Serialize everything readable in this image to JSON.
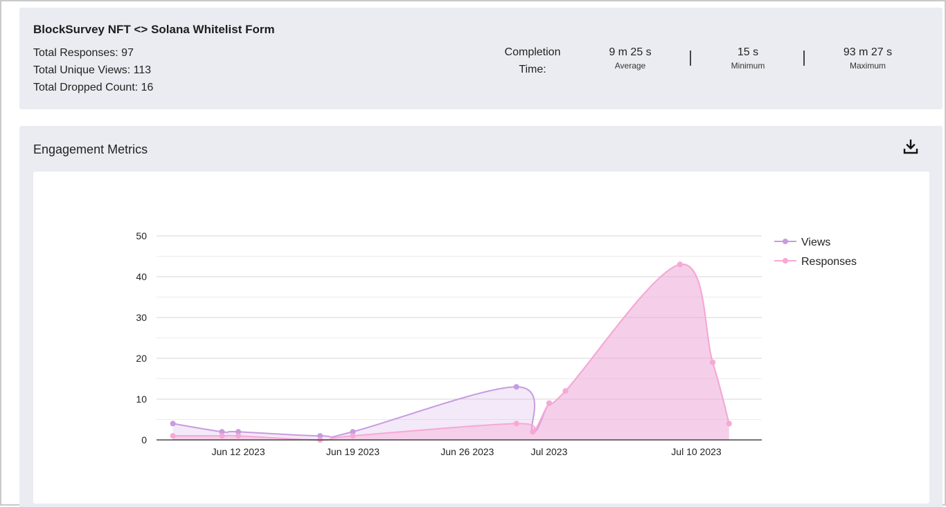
{
  "summary": {
    "title": "BlockSurvey NFT <> Solana Whitelist Form",
    "total_responses": "Total Responses: 97",
    "total_unique_views": "Total Unique Views: 113",
    "total_dropped": "Total Dropped Count: 16",
    "completion_label_line1": "Completion",
    "completion_label_line2": "Time:",
    "average": {
      "value": "9 m 25 s",
      "caption": "Average"
    },
    "minimum": {
      "value": "15 s",
      "caption": "Minimum"
    },
    "maximum": {
      "value": "93 m 27 s",
      "caption": "Maximum"
    }
  },
  "engagement": {
    "title": "Engagement Metrics",
    "download_icon": "download-icon"
  },
  "chart_data": {
    "type": "area",
    "title": "",
    "xlabel": "",
    "ylabel": "",
    "ylim": [
      0,
      50
    ],
    "yticks": [
      0,
      10,
      20,
      30,
      40,
      50
    ],
    "xlim": [
      "2023-06-07",
      "2023-07-14"
    ],
    "xticks": [
      {
        "date": "2023-06-12",
        "label": "Jun 12 2023"
      },
      {
        "date": "2023-06-19",
        "label": "Jun 19 2023"
      },
      {
        "date": "2023-06-26",
        "label": "Jun 26 2023"
      },
      {
        "date": "2023-07-01",
        "label": "Jul 2023"
      },
      {
        "date": "2023-07-10",
        "label": "Jul 10 2023"
      }
    ],
    "grid": true,
    "legend_position": "right",
    "series": [
      {
        "name": "Views",
        "color": "#c79be0",
        "points": [
          {
            "x": "2023-06-08",
            "y": 4
          },
          {
            "x": "2023-06-11",
            "y": 2
          },
          {
            "x": "2023-06-12",
            "y": 2
          },
          {
            "x": "2023-06-17",
            "y": 1
          },
          {
            "x": "2023-06-19",
            "y": 2
          },
          {
            "x": "2023-06-29",
            "y": 13
          },
          {
            "x": "2023-06-30",
            "y": 2
          },
          {
            "x": "2023-07-01",
            "y": 9
          },
          {
            "x": "2023-07-02",
            "y": 12
          },
          {
            "x": "2023-07-09",
            "y": 43
          },
          {
            "x": "2023-07-11",
            "y": 19
          },
          {
            "x": "2023-07-12",
            "y": 4
          }
        ]
      },
      {
        "name": "Responses",
        "color": "#f7a8d4",
        "points": [
          {
            "x": "2023-06-08",
            "y": 1
          },
          {
            "x": "2023-06-11",
            "y": 1
          },
          {
            "x": "2023-06-12",
            "y": 1
          },
          {
            "x": "2023-06-17",
            "y": 0
          },
          {
            "x": "2023-06-19",
            "y": 1
          },
          {
            "x": "2023-06-29",
            "y": 4
          },
          {
            "x": "2023-06-30",
            "y": 2
          },
          {
            "x": "2023-07-01",
            "y": 9
          },
          {
            "x": "2023-07-02",
            "y": 12
          },
          {
            "x": "2023-07-09",
            "y": 43
          },
          {
            "x": "2023-07-11",
            "y": 19
          },
          {
            "x": "2023-07-12",
            "y": 4
          }
        ]
      }
    ]
  }
}
